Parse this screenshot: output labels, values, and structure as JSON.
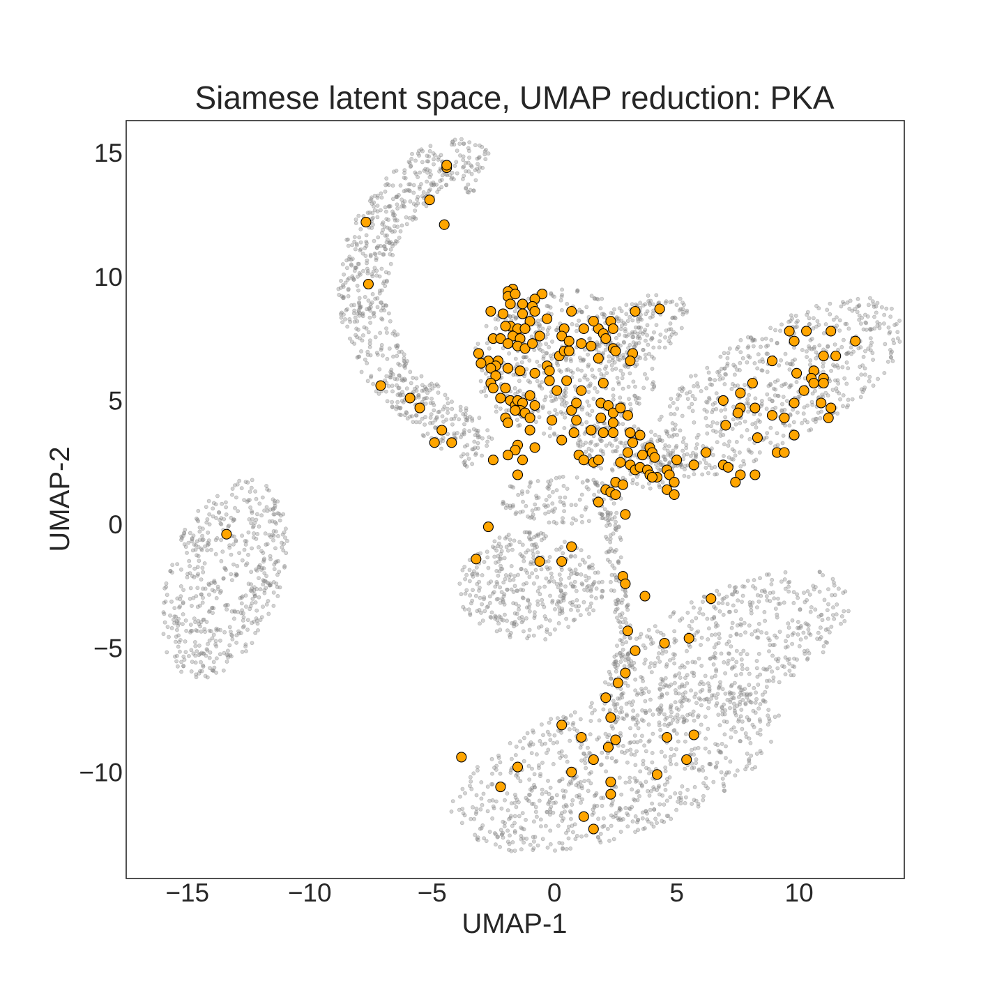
{
  "chart_data": {
    "type": "scatter",
    "title": "Siamese latent space, UMAP reduction: PKA",
    "xlabel": "UMAP-1",
    "ylabel": "UMAP-2",
    "xlim": [
      -17.5,
      14.3
    ],
    "ylim": [
      -14.3,
      16.3
    ],
    "xticks": [
      -15,
      -10,
      -5,
      0,
      5,
      10
    ],
    "yticks": [
      -10,
      -5,
      0,
      5,
      10,
      15
    ],
    "xtick_labels": [
      "−15",
      "−10",
      "−5",
      "0",
      "5",
      "10"
    ],
    "ytick_labels": [
      "−10",
      "−5",
      "0",
      "5",
      "10",
      "15"
    ],
    "grid": false,
    "colors": {
      "background_points": "#808080",
      "highlight_points": "#FFA500",
      "highlight_edge": "#000000"
    },
    "series": [
      {
        "role": "background",
        "marker_color": "#808080",
        "opacity": 0.35,
        "clusters": [
          {
            "shape": "ellipse",
            "n": 520,
            "cx": -13.5,
            "cy": -2.2,
            "rx": 2.3,
            "ry": 4.2,
            "angle_deg": -20
          },
          {
            "shape": "ellipse",
            "n": 380,
            "cx": -1.0,
            "cy": -2.5,
            "rx": 3.0,
            "ry": 2.2,
            "angle_deg": 0
          },
          {
            "shape": "ellipse",
            "n": 650,
            "cx": 9.0,
            "cy": 5.5,
            "rx": 6.0,
            "ry": 2.4,
            "angle_deg": 30
          },
          {
            "shape": "ellipse",
            "n": 520,
            "cx": 7.0,
            "cy": -5.0,
            "rx": 5.5,
            "ry": 2.4,
            "angle_deg": 25
          },
          {
            "shape": "ellipse",
            "n": 800,
            "cx": 2.5,
            "cy": -9.8,
            "rx": 7.0,
            "ry": 2.8,
            "angle_deg": 18
          },
          {
            "shape": "ellipse",
            "n": 560,
            "cx": 0.5,
            "cy": 6.5,
            "rx": 3.8,
            "ry": 3.0,
            "angle_deg": 0
          },
          {
            "shape": "ellipse",
            "n": 160,
            "cx": 3.0,
            "cy": 2.8,
            "rx": 2.2,
            "ry": 1.2,
            "angle_deg": -20
          },
          {
            "shape": "ellipse",
            "n": 120,
            "cx": 0.3,
            "cy": 1.0,
            "rx": 2.5,
            "ry": 1.0,
            "angle_deg": 0
          },
          {
            "shape": "ellipse",
            "n": 140,
            "cx": 3.5,
            "cy": 7.8,
            "rx": 2.2,
            "ry": 1.2,
            "angle_deg": 35
          },
          {
            "shape": "arc",
            "n": 720,
            "path": [
              [
                -2.8,
                3.0
              ],
              [
                -5.0,
                4.5
              ],
              [
                -7.0,
                6.5
              ],
              [
                -8.0,
                9.0
              ],
              [
                -7.5,
                11.5
              ],
              [
                -6.0,
                13.5
              ],
              [
                -4.5,
                14.8
              ],
              [
                -3.0,
                14.2
              ]
            ],
            "width": 1.0
          },
          {
            "shape": "arc",
            "n": 130,
            "path": [
              [
                2.2,
                0.5
              ],
              [
                2.5,
                -1.5
              ],
              [
                2.8,
                -3.5
              ],
              [
                2.8,
                -5.5
              ],
              [
                2.5,
                -7.0
              ]
            ],
            "width": 0.35
          }
        ]
      },
      {
        "role": "highlight",
        "marker_color": "#FFA500",
        "edge_color": "#000000",
        "points": [
          [
            -13.4,
            -0.4
          ],
          [
            -4.4,
            14.4
          ],
          [
            -4.4,
            14.5
          ],
          [
            -5.1,
            13.1
          ],
          [
            -4.5,
            12.1
          ],
          [
            -7.7,
            12.2
          ],
          [
            -7.6,
            9.7
          ],
          [
            -7.1,
            5.6
          ],
          [
            -5.9,
            5.1
          ],
          [
            -5.5,
            4.7
          ],
          [
            -4.6,
            3.8
          ],
          [
            -4.9,
            3.3
          ],
          [
            -4.2,
            3.3
          ],
          [
            -1.7,
            9.5
          ],
          [
            -1.9,
            9.4
          ],
          [
            -1.9,
            9.2
          ],
          [
            -0.5,
            9.3
          ],
          [
            -1.6,
            9.3
          ],
          [
            -0.8,
            9.1
          ],
          [
            -1.3,
            8.9
          ],
          [
            -1.8,
            8.9
          ],
          [
            -0.9,
            8.8
          ],
          [
            -2.6,
            8.6
          ],
          [
            -1.3,
            8.5
          ],
          [
            -0.8,
            8.6
          ],
          [
            -2.1,
            8.5
          ],
          [
            -1.0,
            8.2
          ],
          [
            -0.3,
            8.3
          ],
          [
            0.7,
            8.6
          ],
          [
            -1.8,
            8.0
          ],
          [
            -2.0,
            8.0
          ],
          [
            -1.5,
            7.9
          ],
          [
            -1.2,
            7.9
          ],
          [
            -0.6,
            7.6
          ],
          [
            -2.5,
            7.5
          ],
          [
            -2.2,
            7.5
          ],
          [
            -1.7,
            7.6
          ],
          [
            -1.4,
            7.5
          ],
          [
            -1.9,
            7.3
          ],
          [
            -1.5,
            7.2
          ],
          [
            -1.2,
            7.1
          ],
          [
            -0.9,
            7.3
          ],
          [
            0.4,
            7.9
          ],
          [
            1.2,
            7.9
          ],
          [
            0.3,
            7.6
          ],
          [
            0.6,
            7.4
          ],
          [
            1.1,
            7.3
          ],
          [
            1.5,
            7.2
          ],
          [
            1.8,
            7.9
          ],
          [
            1.6,
            8.2
          ],
          [
            2.0,
            7.7
          ],
          [
            2.3,
            8.2
          ],
          [
            2.4,
            7.9
          ],
          [
            2.1,
            7.5
          ],
          [
            2.4,
            7.1
          ],
          [
            2.5,
            7.0
          ],
          [
            3.3,
            8.6
          ],
          [
            4.3,
            8.7
          ],
          [
            -3.1,
            6.9
          ],
          [
            -2.7,
            6.6
          ],
          [
            -2.3,
            6.6
          ],
          [
            -3.0,
            6.5
          ],
          [
            -2.4,
            6.4
          ],
          [
            -2.6,
            6.3
          ],
          [
            -1.9,
            6.3
          ],
          [
            -1.4,
            6.2
          ],
          [
            -0.3,
            6.4
          ],
          [
            -0.2,
            6.2
          ],
          [
            -0.8,
            6.1
          ],
          [
            0.2,
            6.8
          ],
          [
            0.4,
            7.0
          ],
          [
            0.6,
            7.0
          ],
          [
            1.8,
            6.7
          ],
          [
            3.2,
            6.9
          ],
          [
            3.1,
            6.6
          ],
          [
            -2.4,
            6.0
          ],
          [
            -2.6,
            5.7
          ],
          [
            -2.5,
            5.5
          ],
          [
            -2.0,
            5.5
          ],
          [
            -0.2,
            5.8
          ],
          [
            0.1,
            5.4
          ],
          [
            0.5,
            5.8
          ],
          [
            1.1,
            5.4
          ],
          [
            2.0,
            5.7
          ],
          [
            -2.2,
            5.1
          ],
          [
            -1.8,
            5.0
          ],
          [
            -1.6,
            4.8
          ],
          [
            -1.5,
            5.0
          ],
          [
            -1.3,
            4.9
          ],
          [
            -1.0,
            5.2
          ],
          [
            -1.4,
            4.6
          ],
          [
            -1.2,
            4.5
          ],
          [
            -1.6,
            4.6
          ],
          [
            -0.8,
            4.8
          ],
          [
            -1.0,
            4.3
          ],
          [
            -2.0,
            4.3
          ],
          [
            -1.9,
            4.1
          ],
          [
            -0.1,
            4.2
          ],
          [
            0.7,
            4.6
          ],
          [
            0.9,
            4.9
          ],
          [
            0.9,
            4.2
          ],
          [
            1.9,
            4.9
          ],
          [
            2.2,
            4.8
          ],
          [
            2.4,
            4.5
          ],
          [
            2.7,
            4.7
          ],
          [
            3.0,
            4.4
          ],
          [
            1.9,
            4.3
          ],
          [
            2.4,
            4.1
          ],
          [
            -1.0,
            3.8
          ],
          [
            1.5,
            3.8
          ],
          [
            0.8,
            3.7
          ],
          [
            2.0,
            3.7
          ],
          [
            2.4,
            3.7
          ],
          [
            3.1,
            3.7
          ],
          [
            3.5,
            3.6
          ],
          [
            0.3,
            3.4
          ],
          [
            3.2,
            3.3
          ],
          [
            -1.5,
            3.2
          ],
          [
            -1.6,
            3.0
          ],
          [
            -0.8,
            3.1
          ],
          [
            3.9,
            3.1
          ],
          [
            3.0,
            2.9
          ],
          [
            3.6,
            2.8
          ],
          [
            4.0,
            2.9
          ],
          [
            4.1,
            2.7
          ],
          [
            -2.5,
            2.6
          ],
          [
            -1.9,
            2.8
          ],
          [
            -1.3,
            2.6
          ],
          [
            1.0,
            2.8
          ],
          [
            1.2,
            2.6
          ],
          [
            1.6,
            2.5
          ],
          [
            1.8,
            2.6
          ],
          [
            2.7,
            2.5
          ],
          [
            3.1,
            2.4
          ],
          [
            3.3,
            2.2
          ],
          [
            3.5,
            2.3
          ],
          [
            3.8,
            2.2
          ],
          [
            3.9,
            2.0
          ],
          [
            4.2,
            1.9
          ],
          [
            4.0,
            1.9
          ],
          [
            4.6,
            2.2
          ],
          [
            4.7,
            2.0
          ],
          [
            5.0,
            2.6
          ],
          [
            5.7,
            2.4
          ],
          [
            6.2,
            2.9
          ],
          [
            -1.5,
            2.0
          ],
          [
            2.5,
            1.7
          ],
          [
            2.8,
            1.6
          ],
          [
            4.9,
            1.7
          ],
          [
            4.6,
            1.4
          ],
          [
            2.1,
            1.4
          ],
          [
            2.3,
            1.3
          ],
          [
            2.5,
            1.2
          ],
          [
            4.9,
            1.2
          ],
          [
            1.8,
            0.9
          ],
          [
            2.9,
            0.4
          ],
          [
            -2.7,
            -0.1
          ],
          [
            0.7,
            -0.9
          ],
          [
            -3.2,
            -1.4
          ],
          [
            -0.6,
            -1.5
          ],
          [
            0.3,
            -1.5
          ],
          [
            2.8,
            -2.1
          ],
          [
            2.9,
            -2.4
          ],
          [
            3.7,
            -2.9
          ],
          [
            6.4,
            -3.0
          ],
          [
            6.9,
            5.0
          ],
          [
            7.6,
            5.3
          ],
          [
            7.6,
            4.7
          ],
          [
            8.2,
            4.7
          ],
          [
            7.5,
            4.5
          ],
          [
            7.0,
            4.0
          ],
          [
            8.9,
            4.4
          ],
          [
            8.3,
            3.5
          ],
          [
            8.1,
            5.7
          ],
          [
            8.9,
            6.6
          ],
          [
            9.6,
            7.8
          ],
          [
            9.8,
            7.4
          ],
          [
            10.3,
            7.8
          ],
          [
            11.3,
            7.8
          ],
          [
            12.3,
            7.4
          ],
          [
            11.5,
            6.8
          ],
          [
            11.0,
            6.8
          ],
          [
            9.9,
            6.1
          ],
          [
            10.6,
            6.2
          ],
          [
            10.5,
            5.9
          ],
          [
            11.0,
            5.9
          ],
          [
            11.0,
            5.7
          ],
          [
            10.6,
            5.7
          ],
          [
            10.2,
            5.4
          ],
          [
            9.8,
            4.9
          ],
          [
            10.9,
            4.9
          ],
          [
            11.3,
            4.7
          ],
          [
            9.4,
            4.3
          ],
          [
            11.2,
            4.3
          ],
          [
            9.8,
            3.6
          ],
          [
            9.1,
            2.9
          ],
          [
            9.4,
            2.9
          ],
          [
            6.9,
            2.4
          ],
          [
            7.1,
            2.3
          ],
          [
            7.6,
            2.0
          ],
          [
            8.2,
            2.0
          ],
          [
            7.4,
            1.7
          ],
          [
            3.0,
            -4.3
          ],
          [
            3.3,
            -5.1
          ],
          [
            4.5,
            -4.8
          ],
          [
            5.5,
            -4.6
          ],
          [
            2.9,
            -6.0
          ],
          [
            2.6,
            -6.4
          ],
          [
            2.1,
            -7.0
          ],
          [
            2.3,
            -7.8
          ],
          [
            0.3,
            -8.1
          ],
          [
            1.1,
            -8.6
          ],
          [
            2.5,
            -8.7
          ],
          [
            4.6,
            -8.6
          ],
          [
            5.7,
            -8.5
          ],
          [
            2.2,
            -9.0
          ],
          [
            -3.8,
            -9.4
          ],
          [
            -1.5,
            -9.8
          ],
          [
            1.6,
            -9.5
          ],
          [
            5.4,
            -9.5
          ],
          [
            0.7,
            -10.0
          ],
          [
            4.2,
            -10.1
          ],
          [
            2.3,
            -10.4
          ],
          [
            -2.2,
            -10.6
          ],
          [
            2.3,
            -10.9
          ],
          [
            1.2,
            -11.8
          ],
          [
            1.6,
            -12.3
          ]
        ]
      }
    ]
  }
}
